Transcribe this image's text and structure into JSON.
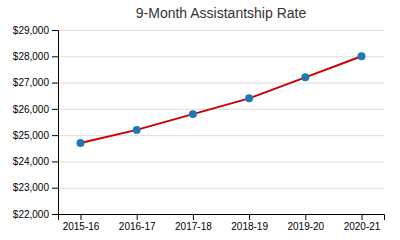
{
  "chart_data": {
    "type": "line",
    "title": "9-Month Assistantship Rate",
    "categories": [
      "2015-16",
      "2016-17",
      "2017-18",
      "2018-19",
      "2019-20",
      "2020-21"
    ],
    "values": [
      24700,
      25200,
      25800,
      26400,
      27200,
      28000
    ],
    "color": "#cc0000",
    "marker": "circle",
    "ylim": [
      22000,
      29000
    ],
    "yticks": [
      {
        "value": 22000,
        "label": "$22,000"
      },
      {
        "value": 23000,
        "label": "$23,000"
      },
      {
        "value": 24000,
        "label": "$24,000"
      },
      {
        "value": 25000,
        "label": "$25,000"
      },
      {
        "value": 26000,
        "label": "$26,000"
      },
      {
        "value": 27000,
        "label": "$27,000"
      },
      {
        "value": 28000,
        "label": "$28,000"
      },
      {
        "value": 29000,
        "label": "$29,000"
      }
    ],
    "grid": true
  }
}
